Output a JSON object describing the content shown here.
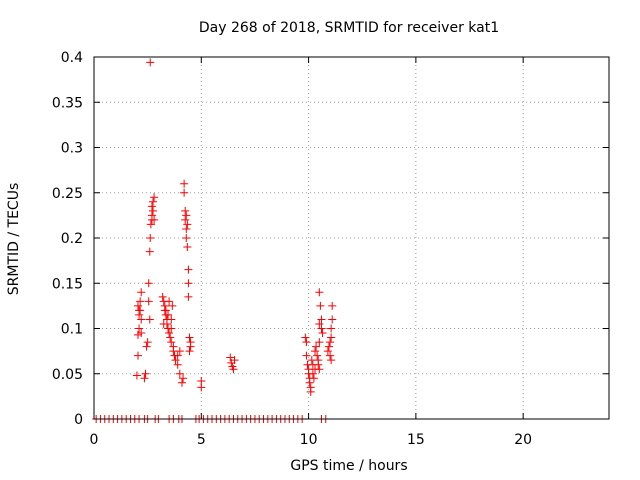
{
  "chart_data": {
    "type": "scatter",
    "title": "Day 268 of 2018, SRMTID for receiver kat1",
    "xlabel": "GPS time / hours",
    "ylabel": "SRMTID / TECUs",
    "xlim": [
      0,
      24
    ],
    "ylim": [
      0,
      0.4
    ],
    "xticks": [
      0,
      5,
      10,
      15,
      20
    ],
    "xtick_labels": [
      "0",
      "5",
      "10",
      "15",
      "20"
    ],
    "yticks": [
      0,
      0.05,
      0.1,
      0.15,
      0.2,
      0.25,
      0.3,
      0.35,
      0.4
    ],
    "ytick_labels": [
      "0",
      "0.05",
      "0.1",
      "0.15",
      "0.2",
      "0.25",
      "0.3",
      "0.35",
      "0.4"
    ],
    "grid": true,
    "marker": "+",
    "color": "#ff0000",
    "series": [
      {
        "points": [
          [
            0.1,
            0
          ],
          [
            0.3,
            0
          ],
          [
            0.5,
            0
          ],
          [
            0.7,
            0
          ],
          [
            0.9,
            0
          ],
          [
            1.1,
            0
          ],
          [
            1.3,
            0
          ],
          [
            1.5,
            0
          ],
          [
            1.7,
            0
          ],
          [
            1.9,
            0
          ],
          [
            2.1,
            0
          ],
          [
            2.35,
            0
          ],
          [
            2.5,
            0
          ],
          [
            2.85,
            0
          ],
          [
            3.0,
            0
          ],
          [
            3.5,
            0
          ],
          [
            3.7,
            0
          ],
          [
            3.95,
            0
          ],
          [
            4.1,
            0
          ],
          [
            4.75,
            0
          ],
          [
            4.9,
            0
          ],
          [
            5.1,
            0
          ],
          [
            5.3,
            0
          ],
          [
            5.5,
            0
          ],
          [
            5.7,
            0
          ],
          [
            5.9,
            0
          ],
          [
            6.1,
            0
          ],
          [
            6.3,
            0
          ],
          [
            6.5,
            0
          ],
          [
            6.7,
            0
          ],
          [
            6.9,
            0
          ],
          [
            7.1,
            0
          ],
          [
            7.3,
            0
          ],
          [
            7.5,
            0
          ],
          [
            7.7,
            0
          ],
          [
            7.9,
            0
          ],
          [
            8.1,
            0
          ],
          [
            8.3,
            0
          ],
          [
            8.5,
            0
          ],
          [
            8.7,
            0
          ],
          [
            8.9,
            0
          ],
          [
            9.1,
            0
          ],
          [
            9.3,
            0
          ],
          [
            9.5,
            0
          ],
          [
            9.7,
            0
          ],
          [
            10.6,
            0
          ],
          [
            10.8,
            0
          ],
          [
            2.0,
            0.048
          ],
          [
            2.05,
            0.07
          ],
          [
            2.05,
            0.093
          ],
          [
            2.1,
            0.1
          ],
          [
            2.1,
            0.115
          ],
          [
            2.15,
            0.12
          ],
          [
            2.15,
            0.13
          ],
          [
            2.2,
            0.14
          ],
          [
            2.2,
            0.11
          ],
          [
            2.1,
            0.12
          ],
          [
            2.05,
            0.125
          ],
          [
            2.2,
            0.095
          ],
          [
            2.35,
            0.045
          ],
          [
            2.4,
            0.05
          ],
          [
            2.45,
            0.08
          ],
          [
            2.5,
            0.085
          ],
          [
            2.55,
            0.15
          ],
          [
            2.55,
            0.13
          ],
          [
            2.6,
            0.11
          ],
          [
            2.62,
            0.394
          ],
          [
            2.6,
            0.185
          ],
          [
            2.62,
            0.2
          ],
          [
            2.65,
            0.215
          ],
          [
            2.7,
            0.22
          ],
          [
            2.7,
            0.225
          ],
          [
            2.75,
            0.23
          ],
          [
            2.75,
            0.24
          ],
          [
            2.8,
            0.245
          ],
          [
            2.8,
            0.22
          ],
          [
            2.7,
            0.235
          ],
          [
            3.2,
            0.135
          ],
          [
            3.25,
            0.13
          ],
          [
            3.3,
            0.125
          ],
          [
            3.3,
            0.12
          ],
          [
            3.35,
            0.115
          ],
          [
            3.4,
            0.11
          ],
          [
            3.4,
            0.105
          ],
          [
            3.45,
            0.1
          ],
          [
            3.5,
            0.095
          ],
          [
            3.5,
            0.13
          ],
          [
            3.55,
            0.09
          ],
          [
            3.6,
            0.1
          ],
          [
            3.35,
            0.12
          ],
          [
            3.45,
            0.115
          ],
          [
            3.25,
            0.105
          ],
          [
            3.6,
            0.085
          ],
          [
            3.7,
            0.08
          ],
          [
            3.7,
            0.075
          ],
          [
            3.75,
            0.07
          ],
          [
            3.8,
            0.065
          ],
          [
            3.9,
            0.07
          ],
          [
            3.9,
            0.06
          ],
          [
            4.0,
            0.075
          ],
          [
            3.65,
            0.125
          ],
          [
            3.6,
            0.11
          ],
          [
            4.1,
            0.04
          ],
          [
            4.15,
            0.045
          ],
          [
            4.0,
            0.05
          ],
          [
            4.2,
            0.26
          ],
          [
            4.2,
            0.25
          ],
          [
            4.25,
            0.23
          ],
          [
            4.25,
            0.22
          ],
          [
            4.3,
            0.21
          ],
          [
            4.3,
            0.2
          ],
          [
            4.35,
            0.19
          ],
          [
            4.3,
            0.225
          ],
          [
            4.35,
            0.215
          ],
          [
            4.4,
            0.165
          ],
          [
            4.4,
            0.15
          ],
          [
            4.4,
            0.135
          ],
          [
            4.45,
            0.09
          ],
          [
            4.5,
            0.085
          ],
          [
            4.5,
            0.08
          ],
          [
            4.45,
            0.075
          ],
          [
            5.0,
            0.042
          ],
          [
            5.0,
            0.035
          ],
          [
            6.35,
            0.068
          ],
          [
            6.4,
            0.062
          ],
          [
            6.45,
            0.058
          ],
          [
            6.5,
            0.055
          ],
          [
            6.55,
            0.065
          ],
          [
            9.85,
            0.09
          ],
          [
            9.9,
            0.085
          ],
          [
            9.9,
            0.07
          ],
          [
            9.95,
            0.06
          ],
          [
            10.0,
            0.055
          ],
          [
            10.0,
            0.05
          ],
          [
            10.05,
            0.045
          ],
          [
            10.05,
            0.04
          ],
          [
            10.1,
            0.035
          ],
          [
            10.1,
            0.03
          ],
          [
            10.15,
            0.065
          ],
          [
            10.2,
            0.06
          ],
          [
            10.2,
            0.05
          ],
          [
            10.25,
            0.045
          ],
          [
            10.3,
            0.055
          ],
          [
            10.3,
            0.075
          ],
          [
            10.35,
            0.08
          ],
          [
            10.4,
            0.07
          ],
          [
            10.45,
            0.065
          ],
          [
            10.45,
            0.06
          ],
          [
            10.5,
            0.055
          ],
          [
            10.5,
            0.085
          ],
          [
            10.5,
            0.14
          ],
          [
            10.55,
            0.125
          ],
          [
            10.6,
            0.11
          ],
          [
            10.6,
            0.1
          ],
          [
            10.65,
            0.095
          ],
          [
            10.5,
            0.105
          ],
          [
            10.9,
            0.075
          ],
          [
            10.95,
            0.08
          ],
          [
            11.0,
            0.07
          ],
          [
            11.0,
            0.085
          ],
          [
            11.05,
            0.09
          ],
          [
            11.05,
            0.1
          ],
          [
            11.1,
            0.11
          ],
          [
            11.1,
            0.125
          ],
          [
            11.05,
            0.065
          ]
        ]
      }
    ]
  }
}
